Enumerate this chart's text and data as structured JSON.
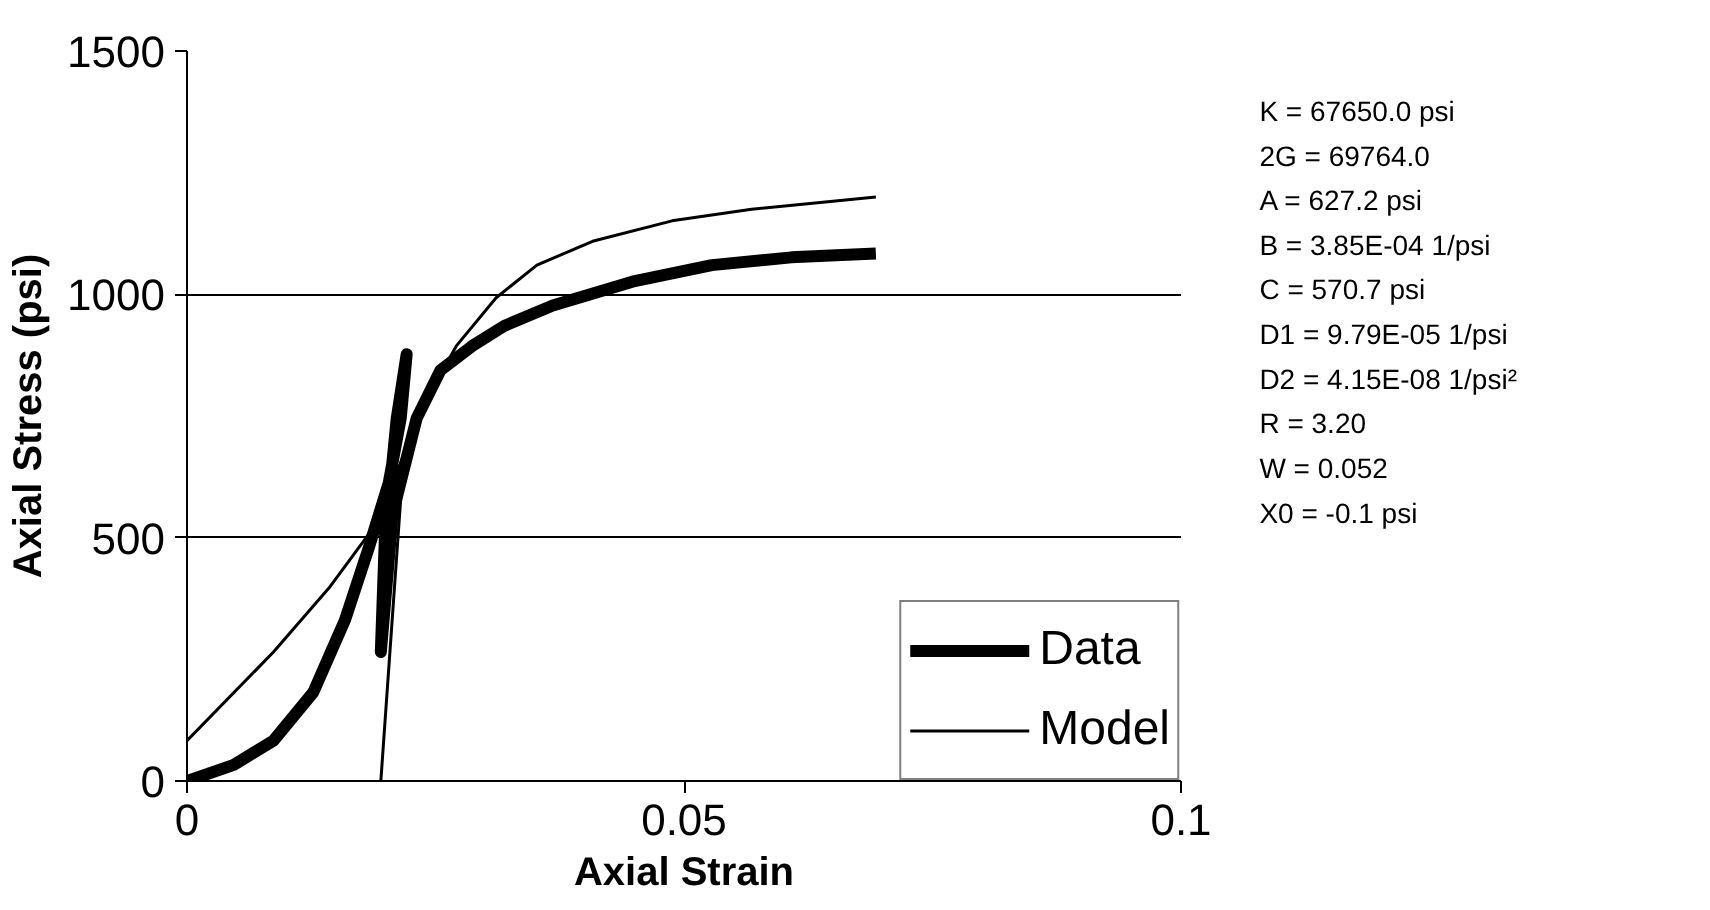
{
  "chart_data": {
    "type": "line",
    "xlabel": "Axial Strain",
    "ylabel": "Axial Stress (psi)",
    "xlim": [
      0,
      0.1
    ],
    "ylim": [
      0,
      1500
    ],
    "xticks": [
      0,
      0.05,
      0.1
    ],
    "yticks": [
      0,
      500,
      1000,
      1500
    ],
    "grid": "y",
    "legend": "bottom right",
    "series": [
      {
        "name": "Data",
        "color": "#000000",
        "x": [
          0,
          0.0047,
          0.0087,
          0.0127,
          0.0159,
          0.0183,
          0.0203,
          0.0215,
          0.0221,
          0.0211,
          0.0199,
          0.0195,
          0.0207,
          0.0231,
          0.0255,
          0.0287,
          0.0319,
          0.0368,
          0.0448,
          0.0528,
          0.0608,
          0.0693
        ],
        "values": [
          0,
          33,
          83,
          182,
          331,
          480,
          613,
          745,
          877,
          745,
          497,
          265,
          550,
          745,
          844,
          894,
          935,
          977,
          1026,
          1060,
          1076,
          1084
        ]
      },
      {
        "name": "Model",
        "color": "#000000",
        "x": [
          0,
          0.0087,
          0.0143,
          0.0191,
          0.0207,
          0.0239,
          0.0271,
          0.0311,
          0.0352,
          0.0408,
          0.0488,
          0.0568,
          0.0693,
          null,
          0.0195,
          0.0215
        ],
        "values": [
          83,
          265,
          397,
          530,
          613,
          778,
          894,
          993,
          1060,
          1109,
          1151,
          1175,
          1200,
          null,
          0,
          580
        ]
      }
    ],
    "annotations": [
      "K = 67650.0 psi",
      "2G = 69764.0",
      "A = 627.2 psi",
      "B = 3.85E-04 1/psi",
      "C = 570.7 psi",
      "D1 = 9.79E-05 1/psi",
      "D2 = 4.15E-08 1/psi²",
      "R = 3.20",
      "W = 0.052",
      "X0 = -0.1 psi"
    ]
  }
}
